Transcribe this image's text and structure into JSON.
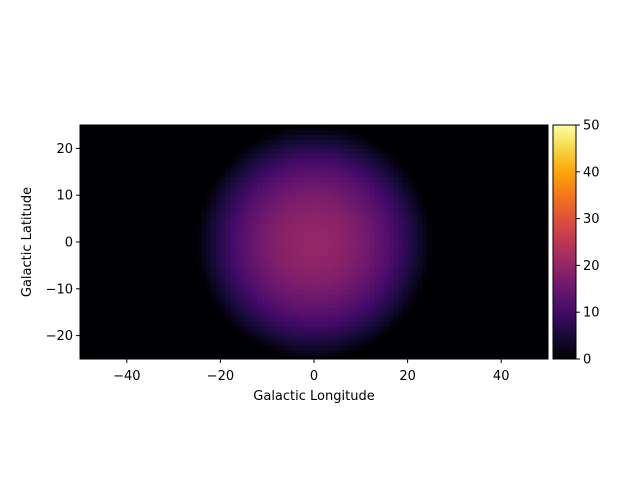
{
  "chart_data": {
    "type": "heatmap",
    "title": "",
    "xlabel": "Galactic Longitude",
    "ylabel": "Galactic Latitude",
    "xlim": [
      -50,
      50
    ],
    "ylim": [
      -25,
      25
    ],
    "x_ticks": [
      -40,
      -20,
      0,
      20,
      40
    ],
    "x_tick_labels": [
      "−40",
      "−20",
      "0",
      "20",
      "40"
    ],
    "y_ticks": [
      -20,
      -10,
      0,
      10,
      20
    ],
    "y_tick_labels": [
      "−20",
      "−10",
      "0",
      "10",
      "20"
    ],
    "colormap": "inferno",
    "colorbar": {
      "range": [
        0,
        50
      ],
      "ticks": [
        0,
        10,
        20,
        30,
        40,
        50
      ],
      "tick_labels": [
        "0",
        "10",
        "20",
        "30",
        "40",
        "50"
      ],
      "placement": "right"
    },
    "field": {
      "shape": "circular-blob",
      "center": [
        0,
        0
      ],
      "peak_value": 20,
      "edge_value": 0,
      "radius": 25
    },
    "grid": false,
    "legend": "none"
  }
}
